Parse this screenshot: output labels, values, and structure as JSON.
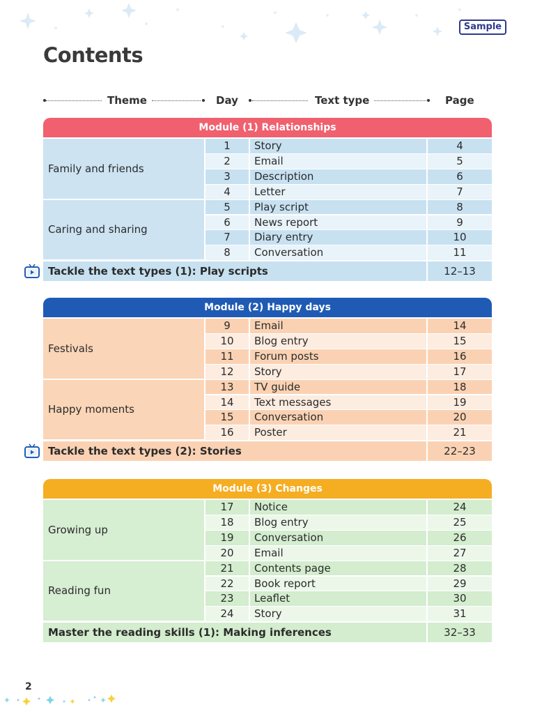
{
  "badge": "Sample",
  "title": "Contents",
  "headers": {
    "theme": "Theme",
    "day": "Day",
    "text_type": "Text type",
    "page": "Page"
  },
  "modules": [
    {
      "title": "Module (1) Relationships",
      "color": "#f0606e",
      "theme_bg": "#cde3f2",
      "row_a": "#c7e1f1",
      "row_b": "#e9f3fa",
      "groups": [
        {
          "theme": "Family and friends",
          "rows": [
            {
              "day": "1",
              "type": "Story",
              "page": "4"
            },
            {
              "day": "2",
              "type": "Email",
              "page": "5"
            },
            {
              "day": "3",
              "type": "Description",
              "page": "6"
            },
            {
              "day": "4",
              "type": "Letter",
              "page": "7"
            }
          ]
        },
        {
          "theme": "Caring and sharing",
          "rows": [
            {
              "day": "5",
              "type": "Play script",
              "page": "8"
            },
            {
              "day": "6",
              "type": "News report",
              "page": "9"
            },
            {
              "day": "7",
              "type": "Diary entry",
              "page": "10"
            },
            {
              "day": "8",
              "type": "Conversation",
              "page": "11"
            }
          ]
        }
      ],
      "footer": {
        "text": "Tackle the text types (1): Play scripts",
        "page": "12–13",
        "icon": "tv-icon"
      }
    },
    {
      "title": "Module (2) Happy days",
      "color": "#1f5bb5",
      "theme_bg": "#fbd5b7",
      "row_a": "#fad2b3",
      "row_b": "#fdece0",
      "groups": [
        {
          "theme": "Festivals",
          "rows": [
            {
              "day": "9",
              "type": "Email",
              "page": "14"
            },
            {
              "day": "10",
              "type": "Blog entry",
              "page": "15"
            },
            {
              "day": "11",
              "type": "Forum posts",
              "page": "16"
            },
            {
              "day": "12",
              "type": "Story",
              "page": "17"
            }
          ]
        },
        {
          "theme": "Happy moments",
          "rows": [
            {
              "day": "13",
              "type": "TV guide",
              "page": "18"
            },
            {
              "day": "14",
              "type": "Text messages",
              "page": "19"
            },
            {
              "day": "15",
              "type": "Conversation",
              "page": "20"
            },
            {
              "day": "16",
              "type": "Poster",
              "page": "21"
            }
          ]
        }
      ],
      "footer": {
        "text": "Tackle the text types (2): Stories",
        "page": "22–23",
        "icon": "tv-icon"
      }
    },
    {
      "title": "Module (3) Changes",
      "color": "#f5ad22",
      "theme_bg": "#d6eed2",
      "row_a": "#d3edce",
      "row_b": "#ecf7ea",
      "groups": [
        {
          "theme": "Growing up",
          "rows": [
            {
              "day": "17",
              "type": "Notice",
              "page": "24"
            },
            {
              "day": "18",
              "type": "Blog entry",
              "page": "25"
            },
            {
              "day": "19",
              "type": "Conversation",
              "page": "26"
            },
            {
              "day": "20",
              "type": "Email",
              "page": "27"
            }
          ]
        },
        {
          "theme": "Reading fun",
          "rows": [
            {
              "day": "21",
              "type": "Contents page",
              "page": "28"
            },
            {
              "day": "22",
              "type": "Book report",
              "page": "29"
            },
            {
              "day": "23",
              "type": "Leaflet",
              "page": "30"
            },
            {
              "day": "24",
              "type": "Story",
              "page": "31"
            }
          ]
        }
      ],
      "footer": {
        "text": "Master the reading skills (1): Making inferences",
        "page": "32–33",
        "icon": ""
      }
    }
  ],
  "page_number": "2"
}
